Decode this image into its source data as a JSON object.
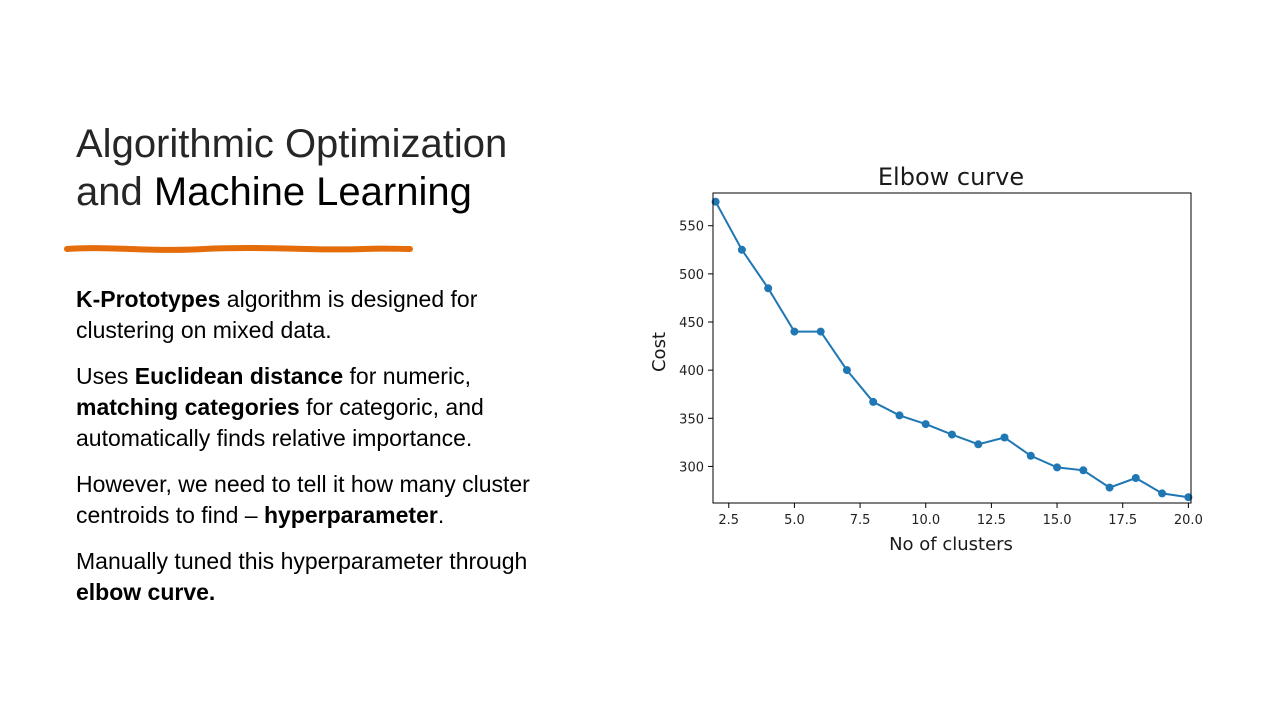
{
  "slide": {
    "title_line1": "Algorithmic Optimization",
    "title_and": "and",
    "title_ml": "Machine Learning",
    "accent_color": "#E46C0A",
    "paragraphs": [
      {
        "a_bold": "K-Prototypes",
        "a_rest": " algorithm is designed for clustering on mixed data."
      },
      {
        "b_1": "Uses ",
        "b_bold1": "Euclidean distance",
        "b_2": " for numeric, ",
        "b_bold2": "matching categories",
        "b_3": " for categoric, and automatically finds relative importance."
      },
      {
        "c_1": "However, we need to tell it how many cluster centroids to find – ",
        "c_bold": "hyperparameter",
        "c_2": "."
      },
      {
        "d_1": "Manually tuned this hyperparameter through ",
        "d_bold": "elbow curve."
      }
    ]
  },
  "chart_data": {
    "type": "line",
    "title": "Elbow curve",
    "xlabel": "No of clusters",
    "ylabel": "Cost",
    "x": [
      2,
      3,
      4,
      5,
      6,
      7,
      8,
      9,
      10,
      11,
      12,
      13,
      14,
      15,
      16,
      17,
      18,
      19,
      20
    ],
    "y": [
      575,
      525,
      485,
      440,
      440,
      400,
      367,
      353,
      344,
      333,
      323,
      330,
      311,
      299,
      296,
      278,
      288,
      272,
      268
    ],
    "xlim": [
      1.9,
      20.1
    ],
    "ylim": [
      262,
      584
    ],
    "xticks": [
      "2.5",
      "5.0",
      "7.5",
      "10.0",
      "12.5",
      "15.0",
      "17.5",
      "20.0"
    ],
    "yticks": [
      "300",
      "350",
      "400",
      "450",
      "500",
      "550"
    ],
    "grid": false,
    "marker": "circle",
    "line_color": "#1f77b4"
  }
}
